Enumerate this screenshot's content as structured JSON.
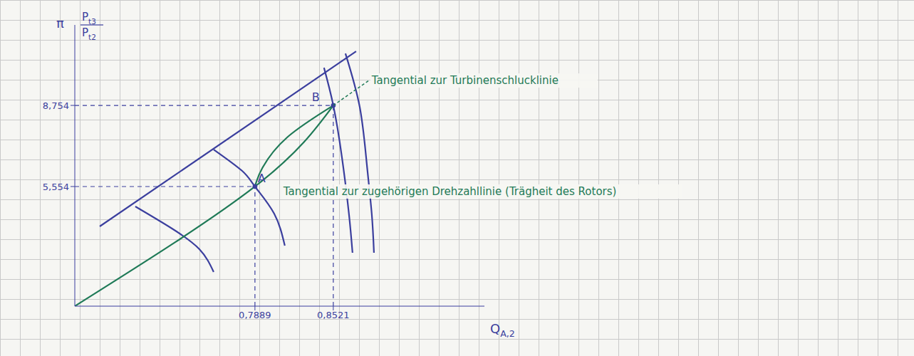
{
  "chart_data": {
    "type": "line",
    "x_label": {
      "main": "Q",
      "sub": "A,2"
    },
    "y_label": {
      "symbol": "π",
      "numerator": {
        "main": "P",
        "sub": "t3"
      },
      "denominator": {
        "main": "P",
        "sub": "t2"
      }
    },
    "xlim": [
      0.6436,
      0.974
    ],
    "ylim": [
      0.834,
      11.93
    ],
    "xticks": [
      {
        "value": 0.7889,
        "label": "0,7889"
      },
      {
        "value": 0.8521,
        "label": "0,8521"
      }
    ],
    "yticks": [
      {
        "value": 5.554,
        "label": "5,554"
      },
      {
        "value": 8.754,
        "label": "8,754"
      }
    ],
    "series": [
      {
        "color": "#3b3f9e",
        "line_style": "solid",
        "x": [
          0.6637,
          0.8705
        ],
        "values": [
          3.98,
          10.889
        ]
      },
      {
        "color": "#3b3f9e",
        "line_style": "solid",
        "x": [
          0.6924,
          0.7211,
          0.7441,
          0.7556
        ],
        "values": [
          4.766,
          3.923,
          3.081,
          2.182
        ]
      },
      {
        "color": "#3b3f9e",
        "line_style": "solid",
        "x": [
          0.7556,
          0.7786,
          0.7889,
          0.8044,
          0.813
        ],
        "values": [
          7.013,
          6.17,
          5.554,
          4.485,
          3.221
        ]
      },
      {
        "color": "#3b3f9e",
        "line_style": "solid",
        "x": [
          0.8446,
          0.8521,
          0.859,
          0.8647,
          0.8676
        ],
        "values": [
          10.242,
          8.754,
          6.732,
          4.485,
          2.94
        ]
      },
      {
        "color": "#3b3f9e",
        "line_style": "solid",
        "x": [
          0.8619,
          0.8734,
          0.8791,
          0.8831,
          0.8849
        ],
        "values": [
          10.804,
          8.698,
          6.451,
          4.485,
          2.94
        ]
      },
      {
        "color": "#1f7a57",
        "line_style": "solid",
        "x": [
          0.6436,
          0.7889,
          0.8521
        ],
        "values": [
          0.834,
          5.554,
          8.754
        ]
      },
      {
        "color": "#1f7a57",
        "line_style": "solid",
        "x": [
          0.7889,
          0.795,
          0.815,
          0.8521
        ],
        "values": [
          5.554,
          6.3,
          7.5,
          8.754
        ]
      }
    ],
    "points": [
      {
        "label": "A",
        "x": 0.7889,
        "y": 5.554,
        "color": "#3b3f9e"
      },
      {
        "label": "B",
        "x": 0.8521,
        "y": 8.754,
        "color": "#3b3f9e"
      }
    ],
    "annotations": [
      {
        "text": "Tangential zur Turbinenschlucklinie",
        "at": "B",
        "color": "#1f7a57"
      },
      {
        "text": "Tangential zur zugehörigen Drehzahllinie (Trägheit des Rotors)",
        "at": "A",
        "color": "#1f7a57"
      }
    ]
  }
}
